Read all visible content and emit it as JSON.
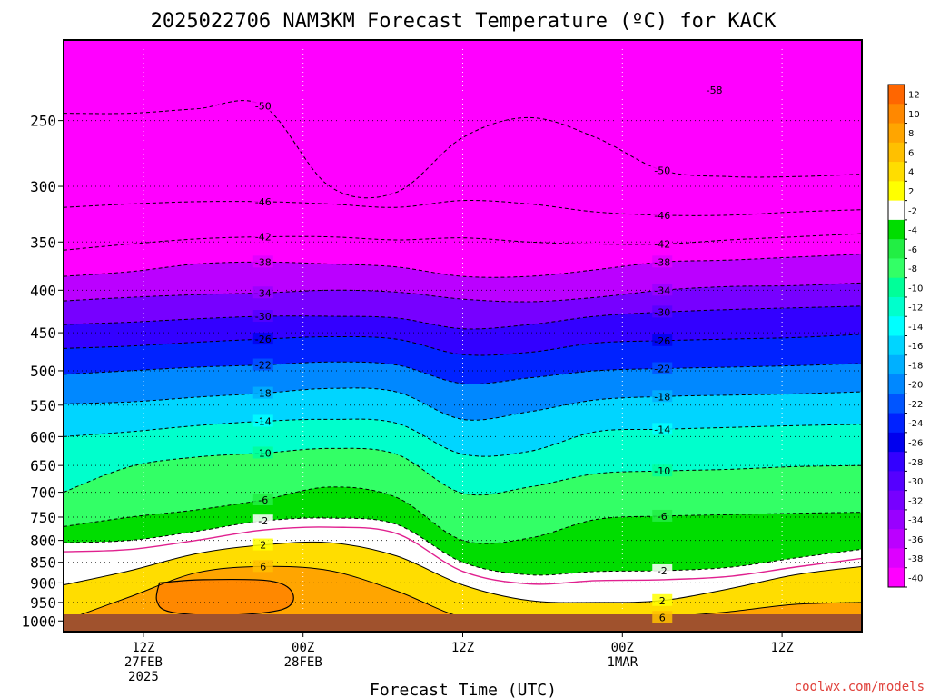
{
  "chart_data": {
    "type": "heatmap",
    "title": "2025022706 NAM3KM Forecast Temperature (ºC) for KACK",
    "xlabel": "Forecast Time (UTC)",
    "ylabel": "",
    "credit": "coolwx.com/models",
    "x_ticks": [
      {
        "t": 6,
        "lines": [
          "12Z",
          "27FEB",
          "2025"
        ]
      },
      {
        "t": 18,
        "lines": [
          "00Z",
          "28FEB"
        ]
      },
      {
        "t": 30,
        "lines": [
          "12Z"
        ]
      },
      {
        "t": 42,
        "lines": [
          "00Z",
          "1MAR"
        ]
      },
      {
        "t": 54,
        "lines": [
          "12Z"
        ]
      }
    ],
    "x_range_hours": [
      0,
      60
    ],
    "y_ticks": [
      250,
      300,
      350,
      400,
      450,
      500,
      550,
      600,
      650,
      700,
      750,
      800,
      850,
      900,
      950,
      1000
    ],
    "y_range_hpa": [
      200,
      1030
    ],
    "y_scale": "log",
    "colorbar": {
      "ticks": [
        12,
        10,
        8,
        6,
        4,
        2,
        -2,
        -4,
        -6,
        -8,
        -10,
        -12,
        -14,
        -16,
        -18,
        -20,
        -22,
        -24,
        -26,
        -28,
        -30,
        -32,
        -34,
        -36,
        -38,
        -40
      ],
      "colors": [
        "#ff6600",
        "#ff8800",
        "#ffa500",
        "#ffc000",
        "#ffdd00",
        "#ffff00",
        "#ffffff",
        "#00dd00",
        "#22ee44",
        "#33ff66",
        "#00ff99",
        "#00ffcc",
        "#00ffff",
        "#00d5ff",
        "#00b0ff",
        "#0088ff",
        "#0055ff",
        "#0022ff",
        "#0000ee",
        "#3300ff",
        "#5500ff",
        "#7700ff",
        "#9900ff",
        "#bb00ff",
        "#dd00ff",
        "#ff00ff"
      ]
    },
    "contours": [
      {
        "label": "-50",
        "t": [
          0,
          5,
          10,
          15,
          20,
          25,
          30,
          35,
          40,
          45,
          50,
          55,
          60
        ],
        "p": [
          245,
          245,
          242,
          240,
          300,
          305,
          262,
          248,
          262,
          287,
          292,
          292,
          290
        ]
      },
      {
        "label": "-46",
        "t": [
          0,
          5,
          10,
          15,
          20,
          25,
          30,
          35,
          40,
          45,
          50,
          55,
          60
        ],
        "p": [
          318,
          315,
          313,
          313,
          315,
          318,
          312,
          315,
          322,
          325,
          325,
          322,
          320
        ]
      },
      {
        "label": "-42",
        "t": [
          0,
          5,
          10,
          15,
          20,
          25,
          30,
          35,
          40,
          45,
          50,
          55,
          60
        ],
        "p": [
          358,
          352,
          347,
          345,
          345,
          348,
          346,
          350,
          352,
          352,
          348,
          345,
          342
        ]
      },
      {
        "label": "-38",
        "t": [
          0,
          5,
          10,
          15,
          20,
          25,
          30,
          35,
          40,
          45,
          50,
          55,
          60
        ],
        "p": [
          385,
          380,
          372,
          370,
          372,
          375,
          385,
          385,
          378,
          370,
          368,
          365,
          362
        ]
      },
      {
        "label": "-34",
        "t": [
          0,
          5,
          10,
          15,
          20,
          25,
          30,
          35,
          40,
          45,
          50,
          55,
          60
        ],
        "p": [
          412,
          408,
          405,
          403,
          400,
          402,
          410,
          413,
          408,
          400,
          396,
          395,
          392
        ]
      },
      {
        "label": "-30",
        "t": [
          0,
          5,
          10,
          15,
          20,
          25,
          30,
          35,
          40,
          45,
          50,
          55,
          60
        ],
        "p": [
          440,
          437,
          433,
          430,
          430,
          432,
          445,
          440,
          430,
          425,
          422,
          420,
          418
        ]
      },
      {
        "label": "-26",
        "t": [
          0,
          5,
          10,
          15,
          20,
          25,
          30,
          35,
          40,
          45,
          50,
          55,
          60
        ],
        "p": [
          470,
          467,
          462,
          458,
          455,
          458,
          478,
          475,
          463,
          460,
          458,
          456,
          452
        ]
      },
      {
        "label": "-22",
        "t": [
          0,
          5,
          10,
          15,
          20,
          25,
          30,
          35,
          40,
          45,
          50,
          55,
          60
        ],
        "p": [
          505,
          500,
          495,
          492,
          488,
          492,
          518,
          510,
          500,
          497,
          495,
          493,
          490
        ]
      },
      {
        "label": "-18",
        "t": [
          0,
          5,
          10,
          15,
          20,
          25,
          30,
          35,
          40,
          45,
          50,
          55,
          60
        ],
        "p": [
          548,
          545,
          538,
          532,
          525,
          530,
          572,
          560,
          542,
          537,
          535,
          533,
          530
        ]
      },
      {
        "label": "-14",
        "t": [
          0,
          5,
          10,
          15,
          20,
          25,
          30,
          35,
          40,
          45,
          50,
          55,
          60
        ],
        "p": [
          600,
          592,
          582,
          575,
          572,
          578,
          630,
          625,
          592,
          588,
          585,
          582,
          580
        ]
      },
      {
        "label": "-10",
        "t": [
          0,
          5,
          10,
          15,
          20,
          25,
          30,
          35,
          40,
          45,
          50,
          55,
          60
        ],
        "p": [
          700,
          652,
          635,
          628,
          620,
          630,
          702,
          690,
          665,
          660,
          657,
          652,
          650
        ]
      },
      {
        "label": "-6",
        "t": [
          0,
          5,
          10,
          15,
          20,
          25,
          30,
          35,
          40,
          45,
          50,
          55,
          60
        ],
        "p": [
          770,
          750,
          735,
          715,
          690,
          710,
          800,
          795,
          755,
          748,
          745,
          742,
          740
        ]
      },
      {
        "label": "-2",
        "t": [
          0,
          5,
          10,
          15,
          20,
          25,
          30,
          35,
          40,
          45,
          50,
          55,
          60
        ],
        "p": [
          805,
          800,
          780,
          758,
          752,
          765,
          850,
          880,
          872,
          870,
          862,
          840,
          820
        ]
      },
      {
        "label": "2",
        "t": [
          0,
          5,
          10,
          15,
          20,
          25,
          30,
          35,
          40,
          45,
          50,
          55,
          60
        ],
        "p": [
          905,
          870,
          830,
          810,
          805,
          835,
          905,
          945,
          950,
          945,
          915,
          880,
          860
        ]
      },
      {
        "label": "6",
        "t": [
          0,
          5,
          10,
          15,
          20,
          25,
          30,
          35,
          40,
          45,
          50,
          55,
          60
        ],
        "p": [
          1000,
          935,
          875,
          860,
          870,
          920,
          990,
          1005,
          1005,
          990,
          975,
          955,
          950
        ]
      }
    ],
    "warm_core_10": [
      {
        "t": 7.2,
        "p": 900
      },
      {
        "t": 10.5,
        "p": 892
      },
      {
        "t": 15.5,
        "p": 895
      },
      {
        "t": 17.2,
        "p": 925
      },
      {
        "t": 16.5,
        "p": 968
      },
      {
        "t": 12,
        "p": 985
      },
      {
        "t": 8,
        "p": 975
      },
      {
        "t": 7,
        "p": 945
      }
    ],
    "high_label": "-58"
  }
}
